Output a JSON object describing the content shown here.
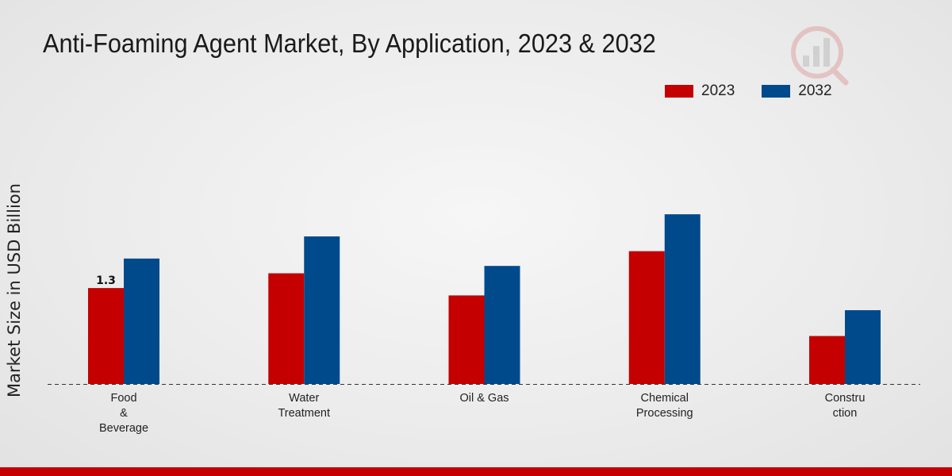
{
  "chart_data": {
    "type": "bar",
    "title": "Anti-Foaming Agent Market, By Application, 2023 & 2032",
    "xlabel": "",
    "ylabel": "Market Size in USD Billion",
    "categories": [
      "Food & Beverage",
      "Water Treatment",
      "Oil & Gas",
      "Chemical Processing",
      "Construction"
    ],
    "category_label_lines": [
      [
        "Food",
        "&",
        "Beverage"
      ],
      [
        "Water",
        "Treatment"
      ],
      [
        "Oil & Gas"
      ],
      [
        "Chemical",
        "Processing"
      ],
      [
        "Constru",
        "ction"
      ]
    ],
    "series": [
      {
        "name": "2023",
        "color": "#c40000",
        "values": [
          1.3,
          1.5,
          1.2,
          1.8,
          0.65
        ]
      },
      {
        "name": "2032",
        "color": "#004a8c",
        "values": [
          1.7,
          2.0,
          1.6,
          2.3,
          1.0
        ]
      }
    ],
    "data_labels": [
      {
        "series": 0,
        "index": 0,
        "text": "1.3"
      }
    ],
    "ylim": [
      0,
      4.0
    ],
    "grid": false,
    "legend_position": "top-right"
  }
}
